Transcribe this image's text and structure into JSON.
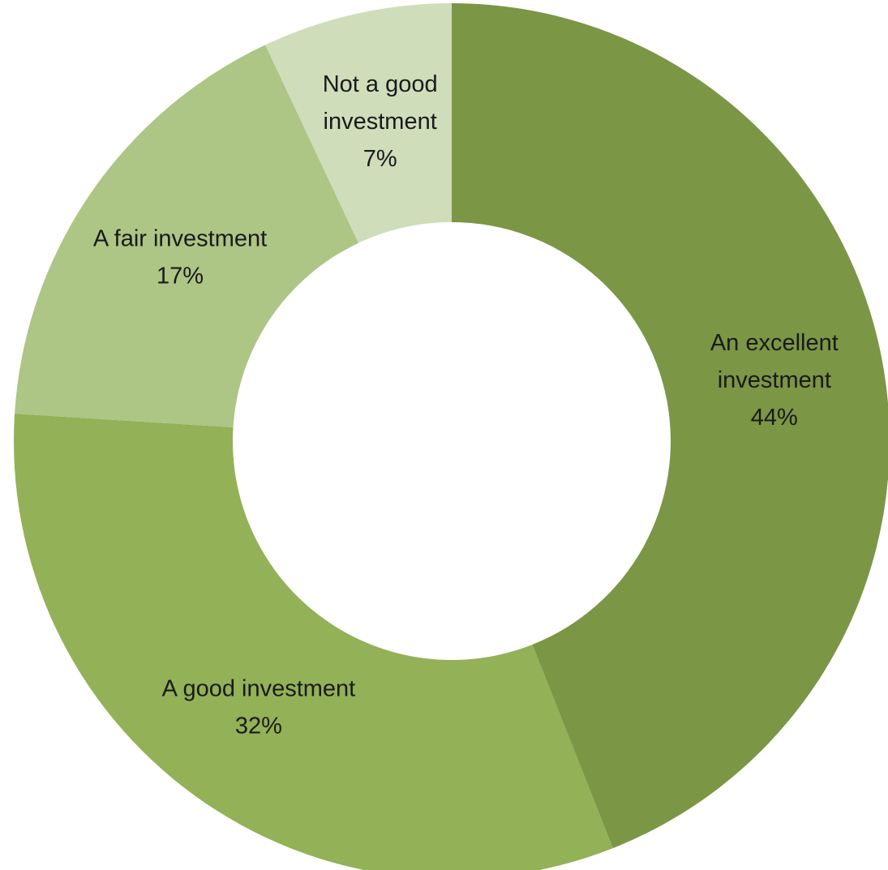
{
  "chart_data": {
    "type": "pie",
    "variant": "donut",
    "title": "",
    "slices": [
      {
        "label_lines": [
          "An excellent",
          "investment"
        ],
        "value": 44,
        "value_label": "44%",
        "color": "#7B9645"
      },
      {
        "label_lines": [
          "A good investment"
        ],
        "value": 32,
        "value_label": "32%",
        "color": "#93B157"
      },
      {
        "label_lines": [
          "A fair investment"
        ],
        "value": 17,
        "value_label": "17%",
        "color": "#ADC585"
      },
      {
        "label_lines": [
          "Not a good",
          "investment"
        ],
        "value": 7,
        "value_label": "7%",
        "color": "#CFDDBA"
      }
    ],
    "legend": "none",
    "start_angle": "12 o'clock",
    "direction": "clockwise"
  }
}
